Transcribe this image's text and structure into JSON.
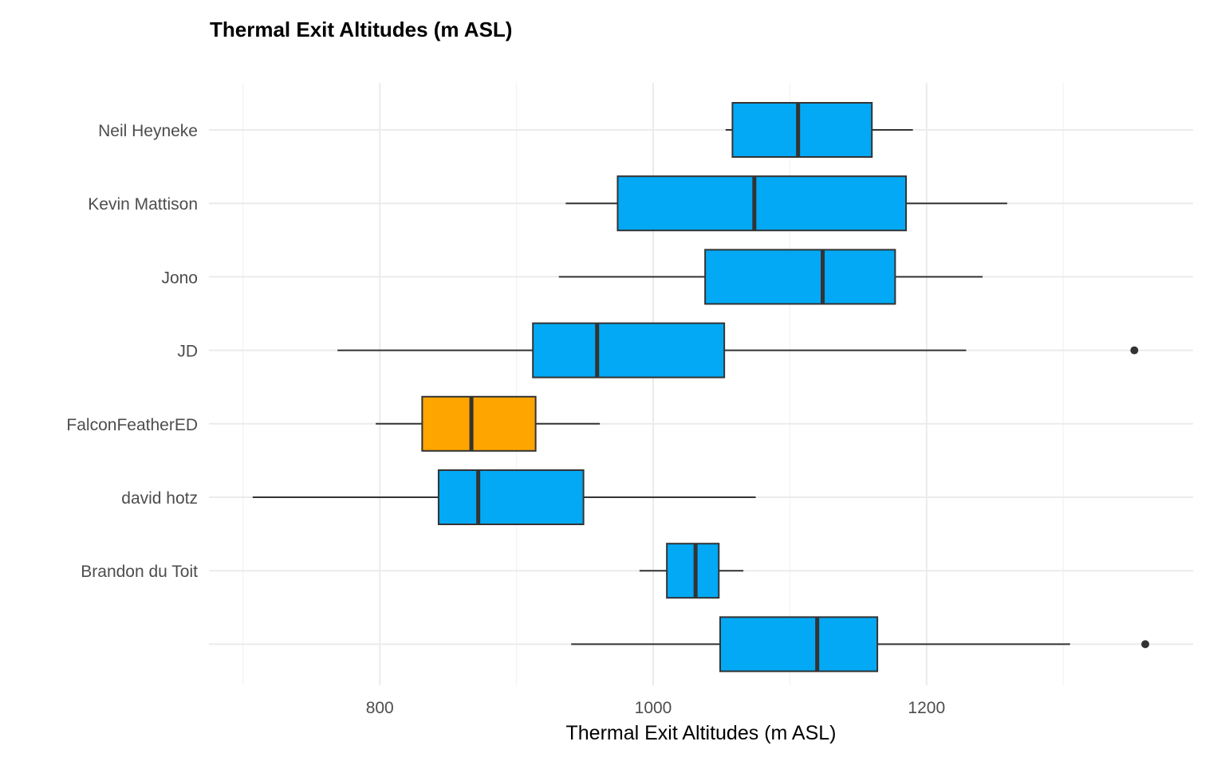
{
  "chart_data": {
    "type": "boxplot",
    "orientation": "horizontal",
    "title": "Thermal Exit Altitudes (m ASL)",
    "xlabel": "Thermal Exit Altitudes (m ASL)",
    "ylabel": "",
    "xlim": [
      675,
      1395
    ],
    "xticks": [
      800,
      1000,
      1200
    ],
    "grid": true,
    "legend": "none",
    "categories": [
      "Neil Heyneke",
      "Kevin Mattison",
      "Jono",
      "JD",
      "FalconFeatherED",
      "david hotz",
      "Brandon du Toit",
      ""
    ],
    "boxes": [
      {
        "category": "Neil Heyneke",
        "whisker_low": 1053,
        "q1": 1058,
        "median": 1106,
        "q3": 1160,
        "whisker_high": 1190,
        "outliers": [],
        "color": "#03A9F4"
      },
      {
        "category": "Kevin Mattison",
        "whisker_low": 936,
        "q1": 974,
        "median": 1074,
        "q3": 1185,
        "whisker_high": 1259,
        "outliers": [],
        "color": "#03A9F4"
      },
      {
        "category": "Jono",
        "whisker_low": 931,
        "q1": 1038,
        "median": 1124,
        "q3": 1177,
        "whisker_high": 1241,
        "outliers": [],
        "color": "#03A9F4"
      },
      {
        "category": "JD",
        "whisker_low": 769,
        "q1": 912,
        "median": 959,
        "q3": 1052,
        "whisker_high": 1229,
        "outliers": [
          1352
        ],
        "color": "#03A9F4"
      },
      {
        "category": "FalconFeatherED",
        "whisker_low": 797,
        "q1": 831,
        "median": 867,
        "q3": 914,
        "whisker_high": 961,
        "outliers": [],
        "color": "#FFA500"
      },
      {
        "category": "david hotz",
        "whisker_low": 707,
        "q1": 843,
        "median": 872,
        "q3": 949,
        "whisker_high": 1075,
        "outliers": [],
        "color": "#03A9F4"
      },
      {
        "category": "Brandon du Toit",
        "whisker_low": 990,
        "q1": 1010,
        "median": 1031,
        "q3": 1048,
        "whisker_high": 1066,
        "outliers": [],
        "color": "#03A9F4"
      },
      {
        "category": "",
        "whisker_low": 940,
        "q1": 1049,
        "median": 1120,
        "q3": 1164,
        "whisker_high": 1305,
        "outliers": [
          1360
        ],
        "color": "#03A9F4"
      }
    ]
  }
}
